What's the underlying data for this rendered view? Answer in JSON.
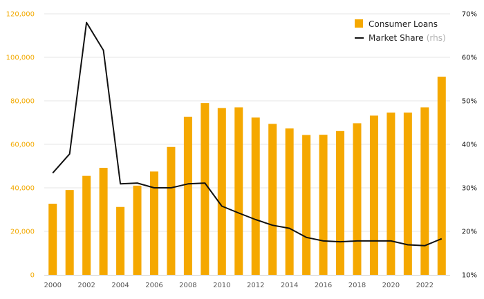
{
  "chart_data": {
    "type": "bar+line",
    "title": "",
    "x": [
      2000,
      2001,
      2002,
      2003,
      2004,
      2005,
      2006,
      2007,
      2008,
      2009,
      2010,
      2011,
      2012,
      2013,
      2014,
      2015,
      2016,
      2017,
      2018,
      2019,
      2020,
      2021,
      2022,
      2023
    ],
    "x_tick_labels": [
      "2000",
      "2002",
      "2004",
      "2006",
      "2008",
      "2010",
      "2012",
      "2014",
      "2016",
      "2018",
      "2020",
      "2022"
    ],
    "left_axis": {
      "ylim": [
        0,
        120000
      ],
      "ticks": [
        "0",
        "20,000",
        "40,000",
        "60,000",
        "80,000",
        "100,000",
        "120,000"
      ],
      "tick_values": [
        0,
        20000,
        40000,
        60000,
        80000,
        100000,
        120000
      ]
    },
    "right_axis": {
      "ylim": [
        10,
        70
      ],
      "ticks": [
        "10%",
        "20%",
        "30%",
        "40%",
        "50%",
        "60%",
        "70%"
      ],
      "tick_values": [
        10,
        20,
        30,
        40,
        50,
        60,
        70
      ]
    },
    "series": [
      {
        "name": "Consumer Loans",
        "type": "bar",
        "axis": "left",
        "color": "#f5a800",
        "values": [
          32700,
          39000,
          45500,
          49200,
          31200,
          41000,
          47500,
          58800,
          72700,
          79000,
          76700,
          77000,
          72300,
          69400,
          67300,
          64300,
          64400,
          66100,
          69700,
          73200,
          74600,
          74600,
          77000,
          91100
        ]
      },
      {
        "name": "Market Share",
        "type": "line",
        "axis": "right",
        "color": "#111111",
        "values": [
          33.4,
          37.8,
          68.0,
          61.6,
          30.9,
          31.1,
          30.0,
          30.0,
          30.9,
          31.1,
          25.8,
          24.2,
          22.7,
          21.4,
          20.7,
          18.6,
          17.8,
          17.6,
          17.8,
          17.8,
          17.8,
          16.9,
          16.7,
          18.3
        ]
      }
    ],
    "legend": {
      "position": "top-right",
      "items": [
        {
          "label": "Consumer Loans",
          "suffix": ""
        },
        {
          "label": "Market Share",
          "suffix": "(rhs)"
        }
      ]
    },
    "grid": true
  }
}
